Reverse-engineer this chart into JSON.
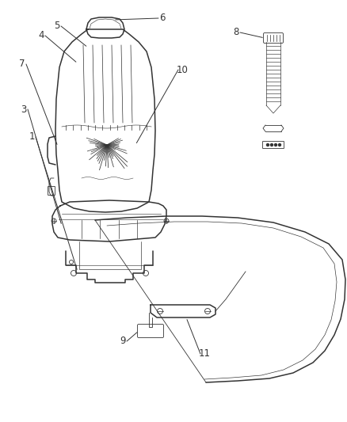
{
  "bg_color": "#ffffff",
  "line_color": "#333333",
  "label_color": "#333333",
  "label_fontsize": 8.5,
  "lw_main": 1.1,
  "lw_thin": 0.6
}
